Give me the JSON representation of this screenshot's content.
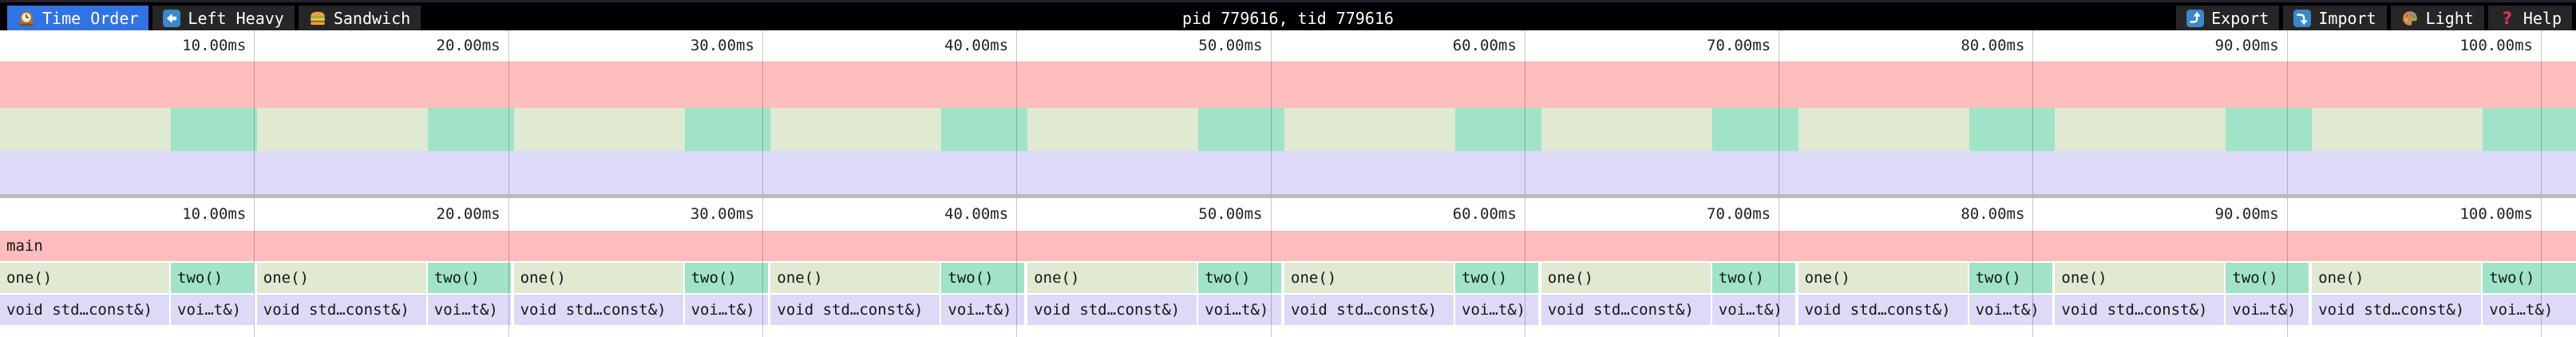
{
  "toolbar": {
    "tabs": [
      {
        "icon": "clock-icon",
        "label": "Time Order",
        "active": true
      },
      {
        "icon": "left-arrow-icon",
        "label": "Left Heavy",
        "active": false
      },
      {
        "icon": "sandwich-icon",
        "label": "Sandwich",
        "active": false
      }
    ],
    "title": "pid 779616, tid 779616",
    "actions": [
      {
        "icon": "export-icon",
        "label": "Export"
      },
      {
        "icon": "import-icon",
        "label": "Import"
      },
      {
        "icon": "palette-icon",
        "label": "Light"
      },
      {
        "icon": "help-icon",
        "label": "Help"
      }
    ]
  },
  "chart_data": {
    "type": "flamegraph",
    "title": "pid 779616, tid 779616",
    "x_unit": "ms",
    "x_ticks_ms": [
      10,
      20,
      30,
      40,
      50,
      60,
      70,
      80,
      90,
      100
    ],
    "x_tick_labels": [
      "10.00ms",
      "20.00ms",
      "30.00ms",
      "40.00ms",
      "50.00ms",
      "60.00ms",
      "70.00ms",
      "80.00ms",
      "90.00ms",
      "100.00ms"
    ],
    "visible_span_ms": 101.4,
    "root_label": "main",
    "call_pattern": {
      "repetitions": 10,
      "period_ms": 10.1,
      "calls": [
        {
          "label": "one()",
          "child_label": "void std…const&)",
          "approx_duration_ms": 6.7
        },
        {
          "label": "two()",
          "child_label": "voi…t&)",
          "approx_duration_ms": 3.4
        }
      ]
    },
    "legend": "none",
    "grid": true
  },
  "colors": {
    "active_tab_bg": "#3173e2",
    "toolbar_bg": "#000000",
    "tab_bg": "#262626",
    "window_top_strip": "#23232d",
    "frame_main": "#fcbdbc",
    "frame_one": "#e0e9d1",
    "frame_two": "#a0e3c8",
    "frame_child": "#dddaf7",
    "gridline": "rgba(0,0,0,0.22)",
    "divider": "#bbbbbb",
    "tick_text": "#222222",
    "frame_text": "#161616"
  }
}
